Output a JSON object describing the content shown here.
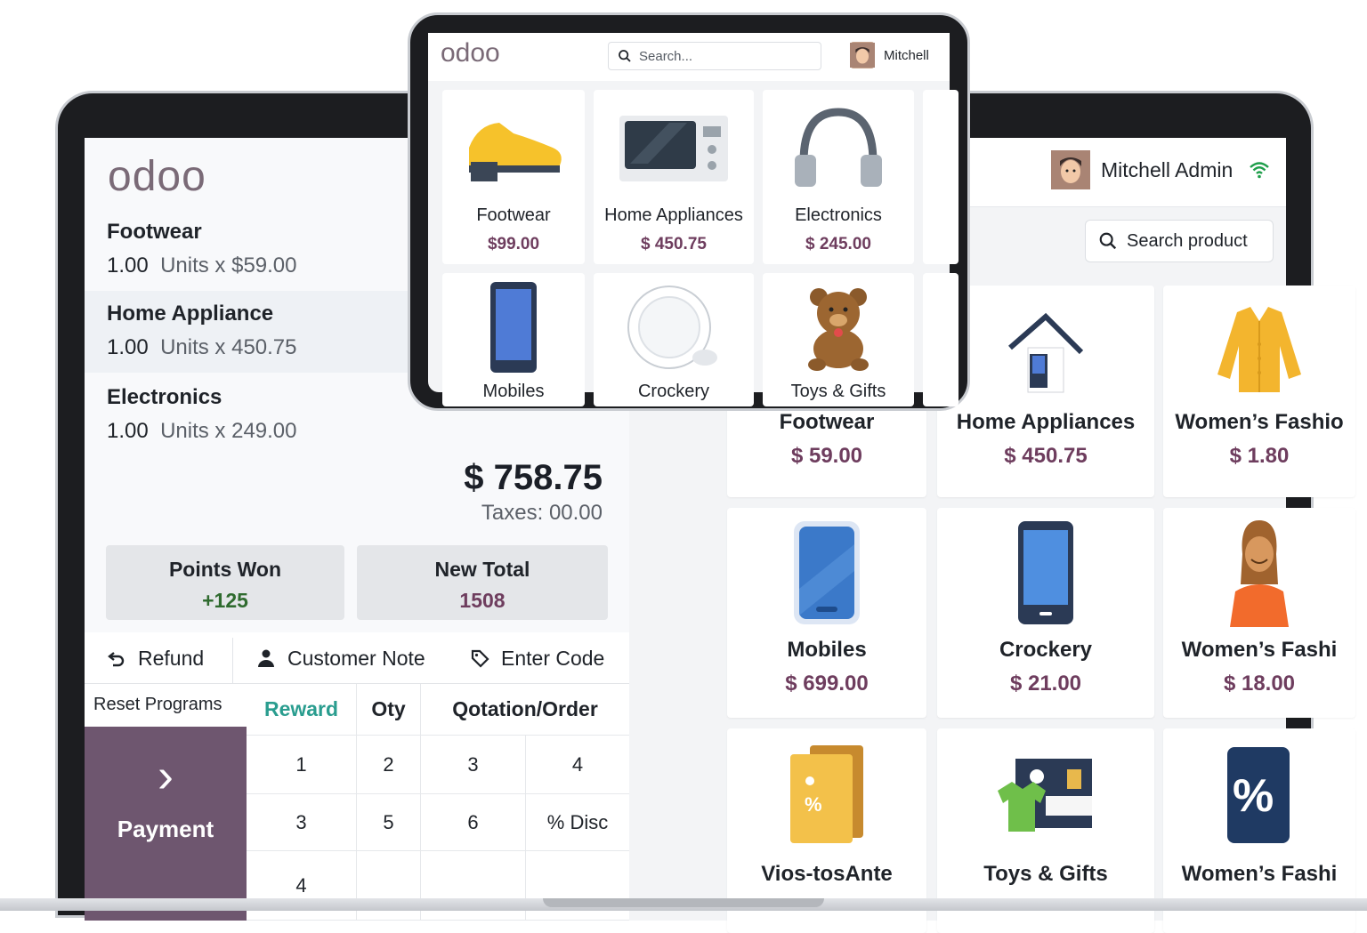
{
  "brand": {
    "logo": "odoo"
  },
  "order": {
    "lines": [
      {
        "name": "Footwear",
        "qty": "1.00",
        "units": "Units",
        "price": "x $59.00"
      },
      {
        "name": "Home Appliance",
        "qty": "1.00",
        "units": "Units",
        "price": "x 450.75"
      },
      {
        "name": "Electronics",
        "qty": "1.00",
        "units": "Units",
        "price": "x 249.00"
      }
    ],
    "total": "$ 758.75",
    "taxes": "Taxes: 00.00",
    "points_label": "Points Won",
    "points_value": "+125",
    "new_total_label": "New Total",
    "new_total_value": "1508"
  },
  "actions": {
    "refund": "Refund",
    "customer_note": "Customer Note",
    "enter_code": "Enter Code"
  },
  "numpad": {
    "reset": "Reset Programs",
    "payment": "Payment",
    "headers": [
      "Reward",
      "Oty",
      "Qotation/Order"
    ],
    "keys": [
      "1",
      "2",
      "3",
      "4",
      "3",
      "5",
      "6",
      "% Disc",
      "4"
    ]
  },
  "header": {
    "user": "Mitchell Admin",
    "search_placeholder": "Search product"
  },
  "products": [
    {
      "name": "Footwear",
      "price": "$ 59.00"
    },
    {
      "name": "Home Appliances",
      "price": "$ 450.75"
    },
    {
      "name": "Women’s Fashio",
      "price": "$ 1.80"
    },
    {
      "name": "Mobiles",
      "price": "$ 699.00"
    },
    {
      "name": "Crockery",
      "price": "$ 21.00"
    },
    {
      "name": "Women’s Fashi",
      "price": "$ 18.00"
    },
    {
      "name": "Vios-tosAnte",
      "price": ""
    },
    {
      "name": "Toys & Gifts",
      "price": ""
    },
    {
      "name": "Women’s Fashi",
      "price": ""
    }
  ],
  "tablet": {
    "logo": "odoo",
    "search_placeholder": "Search...",
    "user": "Mitchell",
    "products": [
      {
        "name": "Footwear",
        "price": "$99.00"
      },
      {
        "name": "Home Appliances",
        "price": "$ 450.75"
      },
      {
        "name": "Electronics",
        "price": "$ 245.00"
      },
      {
        "name": "Mobiles",
        "price": ""
      },
      {
        "name": "Crockery",
        "price": ""
      },
      {
        "name": "Toys & Gifts",
        "price": ""
      }
    ]
  },
  "colors": {
    "accent": "#6e566f",
    "price": "#6e3d5e",
    "points": "#2f6b2f",
    "reward": "#2a9d8f"
  }
}
